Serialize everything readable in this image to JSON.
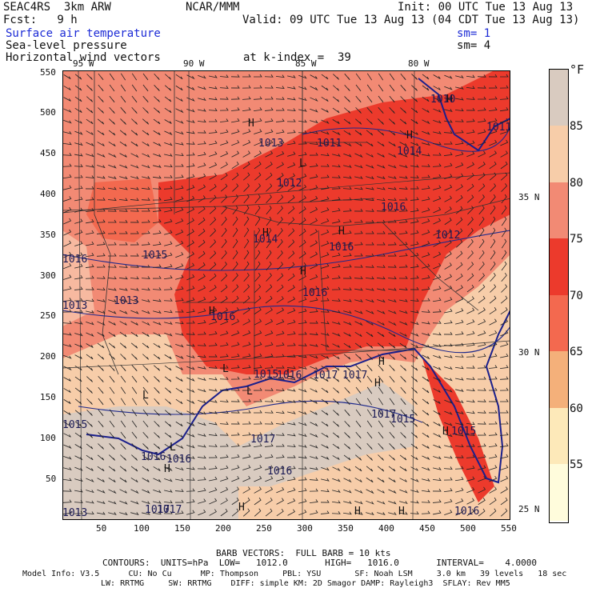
{
  "header": {
    "model": "SEAC4RS  3km ARW",
    "center": "NCAR/MMM",
    "init": "Init: 00 UTC Tue 13 Aug 13",
    "fcst": "Fcst:   9 h",
    "valid": "Valid: 09 UTC Tue 13 Aug 13 (04 CDT Tue 13 Aug 13)",
    "field1": "Surface air temperature",
    "field1_sm": "sm= 1",
    "field2": "Sea-level pressure",
    "field2_sm": "sm= 4",
    "field3": "Horizontal wind vectors",
    "field3_level": "at k-index =  39"
  },
  "top_lon_labels": [
    "95 W",
    "90 W",
    "85 W",
    "80 W"
  ],
  "right_lat_labels": [
    "35 N",
    "30 N",
    "25 N"
  ],
  "y_ticks": [
    "550",
    "500",
    "450",
    "400",
    "350",
    "300",
    "250",
    "200",
    "150",
    "100",
    "50"
  ],
  "x_ticks": [
    "50",
    "100",
    "150",
    "200",
    "250",
    "300",
    "350",
    "400",
    "450",
    "500",
    "550"
  ],
  "pressure_labels": [
    {
      "text": "1013"
    },
    {
      "text": "1011"
    },
    {
      "text": "1014"
    },
    {
      "text": "1010"
    },
    {
      "text": "1011"
    },
    {
      "text": "1012"
    },
    {
      "text": "1016"
    },
    {
      "text": "1014"
    },
    {
      "text": "1016"
    },
    {
      "text": "1012"
    },
    {
      "text": "1016"
    },
    {
      "text": "1015"
    },
    {
      "text": "1016"
    },
    {
      "text": "1013"
    },
    {
      "text": "1013"
    },
    {
      "text": "1016"
    },
    {
      "text": "1015"
    },
    {
      "text": "1016"
    },
    {
      "text": "1017"
    },
    {
      "text": "1017"
    },
    {
      "text": "1015"
    },
    {
      "text": "1017"
    },
    {
      "text": "1017"
    },
    {
      "text": "1015"
    },
    {
      "text": "1016"
    },
    {
      "text": "1016"
    },
    {
      "text": "1016"
    },
    {
      "text": "1017"
    },
    {
      "text": "1017"
    },
    {
      "text": "1013"
    },
    {
      "text": "1015"
    },
    {
      "text": "1016"
    }
  ],
  "colorbar": {
    "unit": "°F",
    "levels": [
      "85",
      "80",
      "75",
      "70",
      "65",
      "60",
      "55"
    ],
    "colors": [
      "#d9cbc0",
      "#f7cda9",
      "#f28a74",
      "#ec3a2c",
      "#f3694f",
      "#f4b07a",
      "#fde9b9",
      "#fffcdc"
    ]
  },
  "footer": {
    "barb": "BARB VECTORS:  FULL BARB = 10 kts",
    "contours": "CONTOURS:  UNITS=hPa  LOW=   1012.0       HIGH=   1016.0       INTERVAL=    4.0000",
    "info1": "Model Info: V3.5      CU: No Cu      MP: Thompson     PBL: YSU       SF: Noah LSM     3.0 km   39 levels   18 sec",
    "info2": "LW: RRTMG     SW: RRTMG    DIFF: simple KM: 2D Smagor DAMP: Rayleigh3  SFLAY: Rev MM5"
  }
}
